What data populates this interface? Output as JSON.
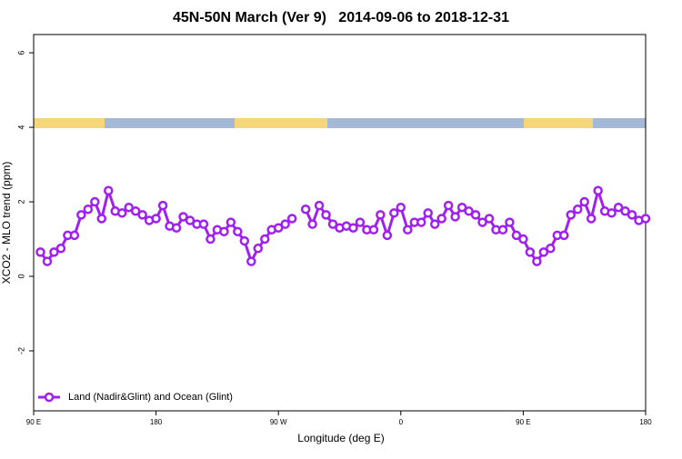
{
  "chart_data": {
    "type": "line",
    "title": "45N-50N March (Ver 9)   2014-09-06 to 2018-12-31",
    "x_label": "Longitude (deg E)",
    "y_label": "XCO2 - MLO trend (ppm)",
    "x": [
      95,
      100,
      105,
      110,
      115,
      120,
      125,
      130,
      135,
      140,
      145,
      150,
      155,
      160,
      165,
      170,
      175,
      180,
      185,
      190,
      195,
      200,
      205,
      210,
      215,
      220,
      225,
      230,
      235,
      240,
      245,
      250,
      255,
      260,
      265,
      270,
      275,
      280,
      285,
      290,
      295,
      300,
      305,
      310,
      315,
      320,
      325,
      330,
      335,
      340,
      345,
      350,
      355,
      360,
      365,
      370,
      375,
      380,
      385,
      390,
      395,
      400,
      405,
      410,
      415,
      420,
      425,
      430,
      435,
      440,
      445,
      450,
      455,
      460,
      465,
      470,
      475,
      480,
      485,
      490,
      495,
      500,
      505,
      510,
      515,
      520,
      525,
      530,
      535,
      540
    ],
    "series": [
      {
        "name": "Land (Nadir&Glint) and Ocean (Glint)",
        "color": "#a020f0",
        "values": [
          0.65,
          0.4,
          0.65,
          0.75,
          1.1,
          1.1,
          1.65,
          1.8,
          2.0,
          1.55,
          2.3,
          1.75,
          1.7,
          1.85,
          1.75,
          1.65,
          1.5,
          1.55,
          1.9,
          1.35,
          1.3,
          1.6,
          1.5,
          1.4,
          1.4,
          1.0,
          1.25,
          1.2,
          1.45,
          1.2,
          0.95,
          0.4,
          0.75,
          1.0,
          1.25,
          1.3,
          1.4,
          1.55,
          null,
          1.8,
          1.4,
          1.9,
          1.65,
          1.4,
          1.3,
          1.35,
          1.3,
          1.45,
          1.25,
          1.25,
          1.65,
          1.1,
          1.7,
          1.85,
          1.25,
          1.45,
          1.45,
          1.7,
          1.4,
          1.55,
          1.9,
          1.6,
          1.85,
          1.75,
          1.65,
          1.45,
          1.55,
          1.25,
          1.25,
          1.45,
          1.1,
          1.0,
          0.65,
          0.4,
          0.65,
          0.75,
          1.1,
          1.1,
          1.65,
          1.8,
          2.0,
          1.55,
          2.3,
          1.75,
          1.7,
          1.85,
          1.75,
          1.65,
          1.5,
          1.55
        ]
      }
    ],
    "xlim": [
      90,
      540
    ],
    "xticks": [
      {
        "value": 90,
        "label": "90 E"
      },
      {
        "value": 180,
        "label": "180"
      },
      {
        "value": 270,
        "label": "90 W"
      },
      {
        "value": 360,
        "label": "0"
      },
      {
        "value": 450,
        "label": "90 E"
      },
      {
        "value": 540,
        "label": "180"
      }
    ],
    "ylim": [
      -3.61,
      6.49
    ],
    "yticks": [
      -2,
      0,
      2,
      4,
      6
    ],
    "legend": "bottom-left"
  }
}
